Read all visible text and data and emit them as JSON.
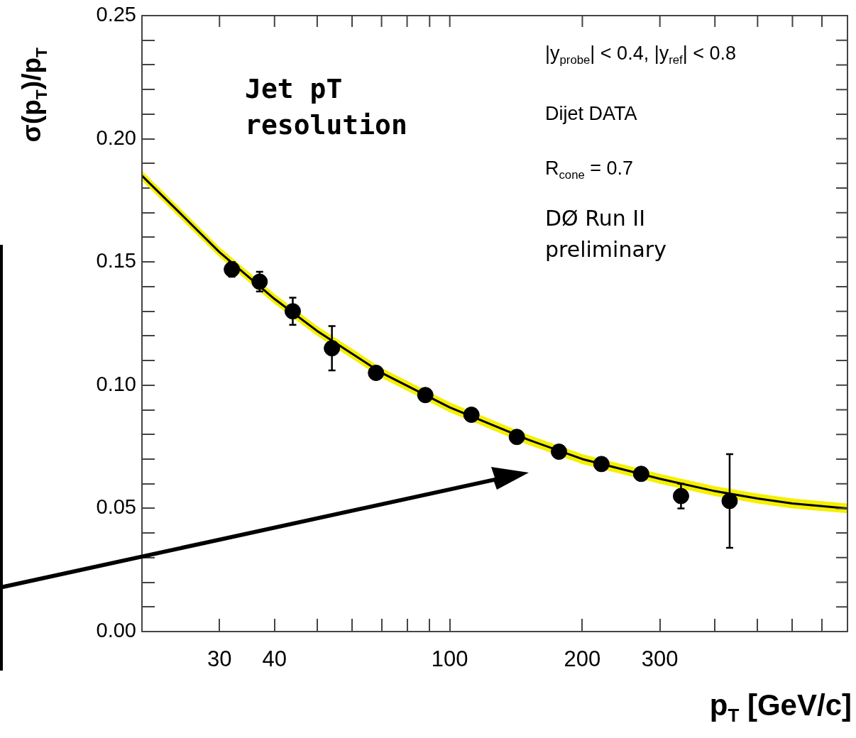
{
  "chart_data": {
    "type": "scatter",
    "xlabel": "p$_{T}$ [GeV/c]",
    "ylabel": "σ(p$_{T}$)/p$_{T}$",
    "annotations": [
      "Jet pT resolution",
      "|y$_{probe}$| < 0.4, |y$_{ref}$| < 0.8",
      "Dijet DATA",
      "R$_{cone}$ = 0.7",
      "DØ Run II preliminary"
    ],
    "log": "x",
    "xlim": [
      20,
      800
    ],
    "xticks": [
      {
        "value": 20,
        "label": null
      },
      30,
      40,
      {
        "value": 50,
        "label": null
      },
      {
        "value": 60,
        "label": null
      },
      {
        "value": 70,
        "label": null
      },
      {
        "value": 80,
        "label": null
      },
      {
        "value": 90,
        "label": null
      },
      100,
      200,
      300,
      {
        "value": 400,
        "label": null
      },
      {
        "value": 500,
        "label": null
      },
      {
        "value": 600,
        "label": null
      },
      {
        "value": 700,
        "label": null
      },
      {
        "value": 800,
        "label": null
      }
    ],
    "ylim": [
      0,
      0.25
    ],
    "yticks": [
      {
        "value": 0,
        "label": "0.00"
      },
      {
        "value": 0.01,
        "label": null
      },
      {
        "value": 0.02,
        "label": null
      },
      {
        "value": 0.03,
        "label": null
      },
      {
        "value": 0.04,
        "label": null
      },
      {
        "value": 0.05,
        "label": "0.05"
      },
      {
        "value": 0.06,
        "label": null
      },
      {
        "value": 0.07,
        "label": null
      },
      {
        "value": 0.08,
        "label": null
      },
      {
        "value": 0.09,
        "label": null
      },
      {
        "value": 0.1,
        "label": "0.10"
      },
      {
        "value": 0.11,
        "label": null
      },
      {
        "value": 0.12,
        "label": null
      },
      {
        "value": 0.13,
        "label": null
      },
      {
        "value": 0.14,
        "label": null
      },
      {
        "value": 0.15,
        "label": "0.15"
      },
      {
        "value": 0.16,
        "label": null
      },
      {
        "value": 0.17,
        "label": null
      },
      {
        "value": 0.18,
        "label": null
      },
      {
        "value": 0.19,
        "label": null
      },
      {
        "value": 0.2,
        "label": "0.20"
      },
      {
        "value": 0.21,
        "label": null
      },
      {
        "value": 0.22,
        "label": null
      },
      {
        "value": 0.23,
        "label": null
      },
      {
        "value": 0.24,
        "label": null
      },
      {
        "value": 0.25,
        "label": "0.25"
      }
    ],
    "grid": false,
    "legend": false,
    "series": [
      {
        "type": "line",
        "color": "#000000",
        "marker": "none",
        "x": [
          20,
          25,
          30,
          40,
          50,
          70,
          100,
          150,
          200,
          300,
          400,
          500,
          600,
          800
        ],
        "values": [
          0.185,
          0.168,
          0.154,
          0.135,
          0.122,
          0.105,
          0.091,
          0.078,
          0.07,
          0.062,
          0.057,
          0.054,
          0.052,
          0.05
        ],
        "lower": [
          0.183,
          0.166,
          0.152,
          0.133,
          0.12,
          0.103,
          0.089,
          0.076,
          0.068,
          0.06,
          0.055,
          0.052,
          0.05,
          0.048
        ],
        "upper": [
          0.187,
          0.17,
          0.156,
          0.137,
          0.124,
          0.107,
          0.093,
          0.08,
          0.072,
          0.064,
          0.059,
          0.056,
          0.054,
          0.052
        ]
      },
      {
        "type": "scatter",
        "color": "#000000",
        "marker": "circle",
        "x": [
          32,
          37,
          44,
          54,
          68,
          88,
          112,
          142,
          177,
          221,
          272,
          335,
          432
        ],
        "values": [
          0.147,
          0.142,
          0.13,
          0.115,
          0.105,
          0.096,
          0.088,
          0.079,
          0.073,
          0.068,
          0.064,
          0.055,
          0.053
        ],
        "errors": [
          0.003,
          0.004,
          0.0055,
          0.009,
          null,
          null,
          null,
          null,
          null,
          null,
          null,
          0.005,
          0.019
        ]
      }
    ]
  }
}
